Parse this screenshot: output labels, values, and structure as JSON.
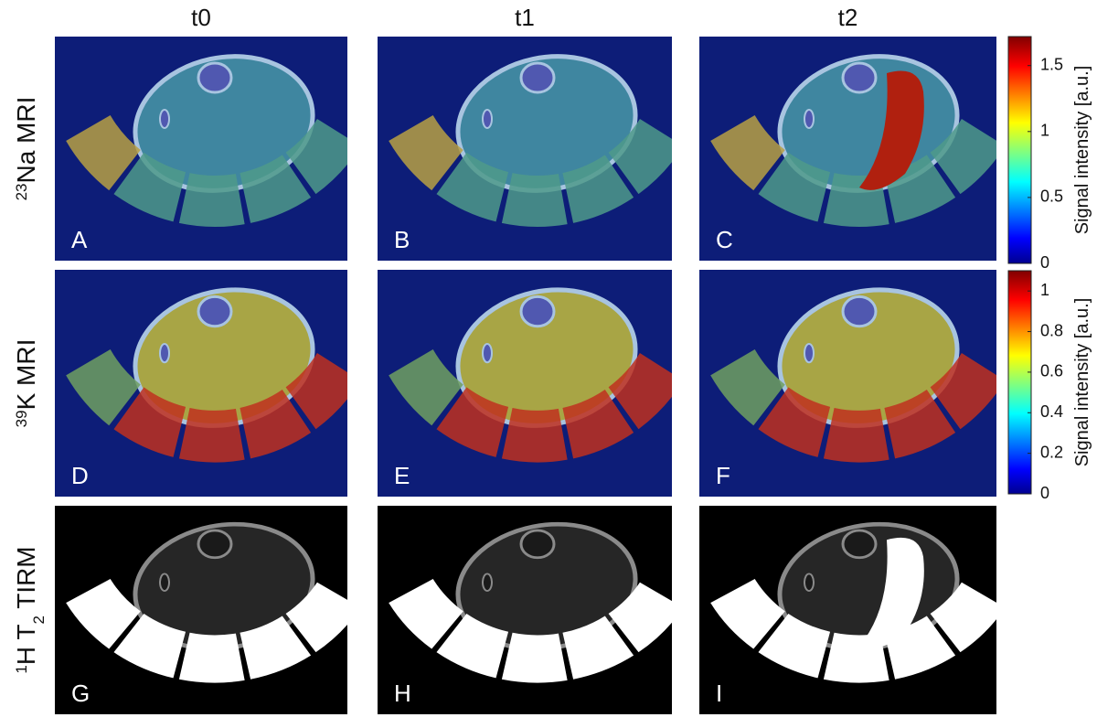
{
  "columns": [
    "t0",
    "t1",
    "t2"
  ],
  "rows": [
    [
      {
        "text": "23",
        "style": "sup"
      },
      {
        "text": "Na MRI"
      }
    ],
    [
      {
        "text": "39",
        "style": "sup"
      },
      {
        "text": "K MRI"
      }
    ],
    [
      {
        "text": "1",
        "style": "sup"
      },
      {
        "text": "H T"
      },
      {
        "text": "2",
        "style": "sub"
      },
      {
        "text": " TIRM"
      }
    ]
  ],
  "panels": [
    "A",
    "B",
    "C",
    "D",
    "E",
    "F",
    "G",
    "H",
    "I"
  ],
  "colorbars": [
    {
      "label": "Signal intensity [a.u.]",
      "lim": [
        0,
        1.72
      ],
      "ticks": [
        0,
        0.5,
        1,
        1.5
      ]
    },
    {
      "label": "Signal intensity [a.u.]",
      "lim": [
        0,
        1.1
      ],
      "ticks": [
        0,
        0.2,
        0.4,
        0.6,
        0.8,
        1
      ]
    }
  ]
}
